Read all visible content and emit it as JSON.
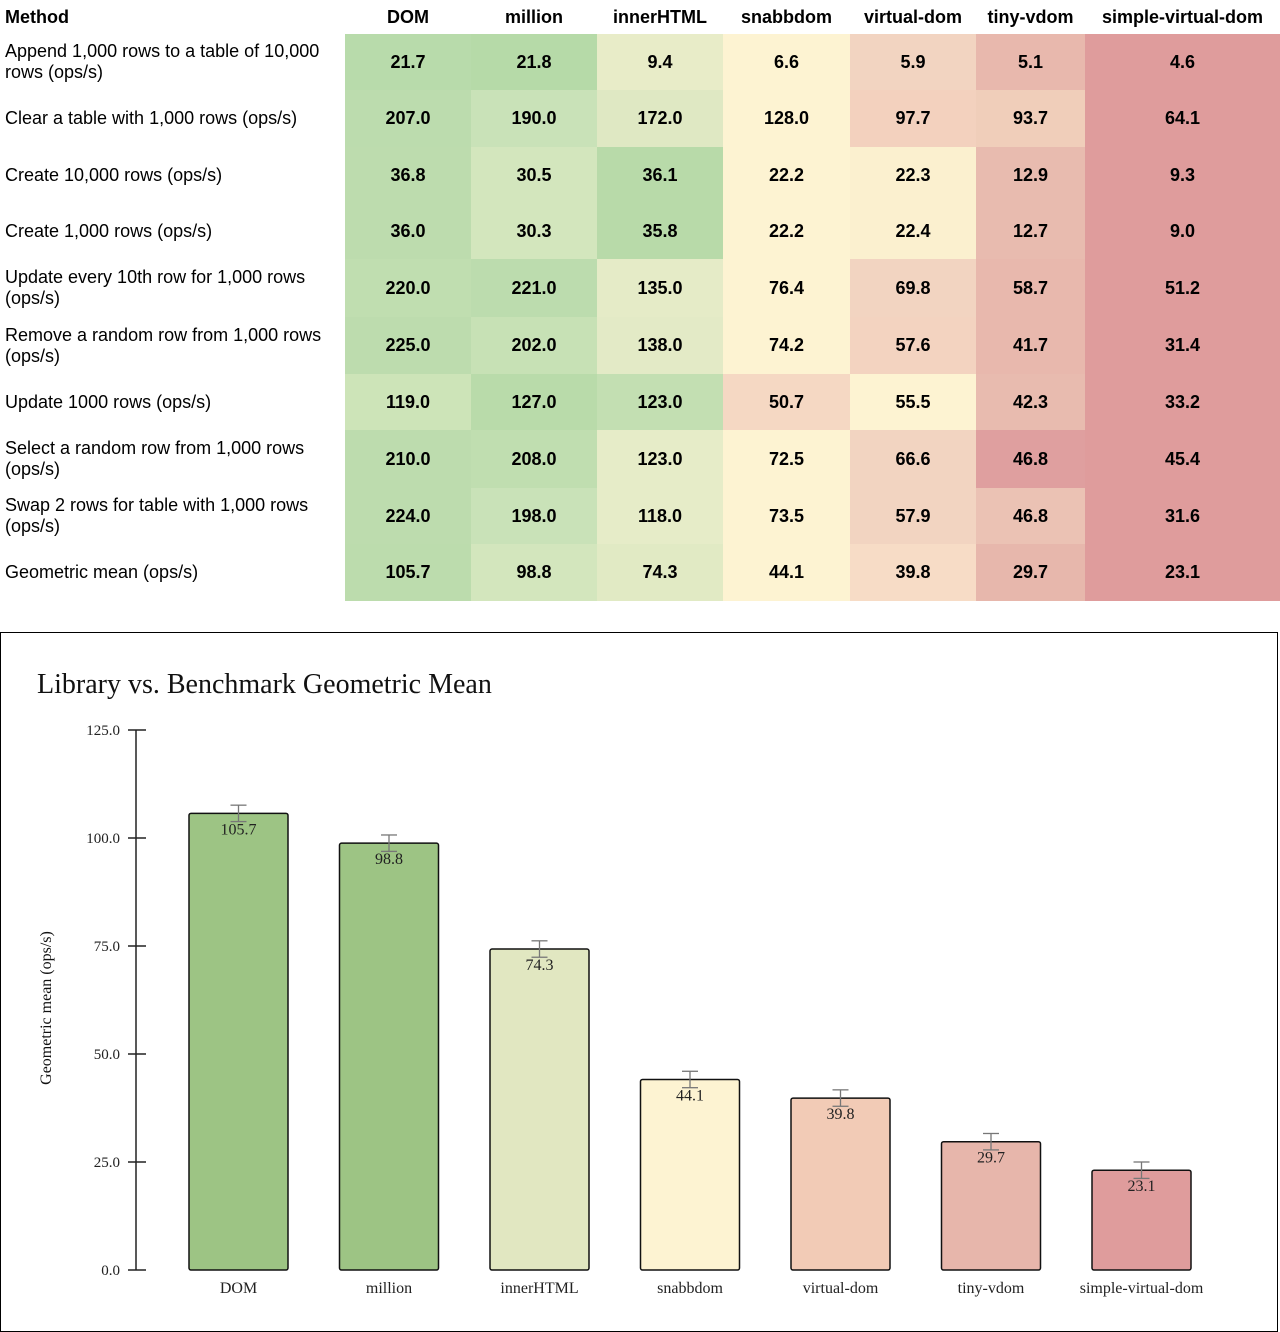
{
  "table": {
    "method_header": "Method",
    "columns": [
      "DOM",
      "million",
      "innerHTML",
      "snabbdom",
      "virtual-dom",
      "tiny-vdom",
      "simple-virtual-dom"
    ],
    "rows": [
      {
        "method": "Append 1,000 rows to a table of 10,000 rows (ops/s)",
        "values": [
          "21.7",
          "21.8",
          "9.4",
          "6.6",
          "5.9",
          "5.1",
          "4.6"
        ]
      },
      {
        "method": "Clear a table with 1,000 rows (ops/s)",
        "values": [
          "207.0",
          "190.0",
          "172.0",
          "128.0",
          "97.7",
          "93.7",
          "64.1"
        ]
      },
      {
        "method": "Create 10,000 rows (ops/s)",
        "values": [
          "36.8",
          "30.5",
          "36.1",
          "22.2",
          "22.3",
          "12.9",
          "9.3"
        ]
      },
      {
        "method": "Create 1,000 rows (ops/s)",
        "values": [
          "36.0",
          "30.3",
          "35.8",
          "22.2",
          "22.4",
          "12.7",
          "9.0"
        ]
      },
      {
        "method": "Update every 10th row for 1,000 rows (ops/s)",
        "values": [
          "220.0",
          "221.0",
          "135.0",
          "76.4",
          "69.8",
          "58.7",
          "51.2"
        ]
      },
      {
        "method": "Remove a random row from 1,000 rows (ops/s)",
        "values": [
          "225.0",
          "202.0",
          "138.0",
          "74.2",
          "57.6",
          "41.7",
          "31.4"
        ]
      },
      {
        "method": "Update 1000 rows (ops/s)",
        "values": [
          "119.0",
          "127.0",
          "123.0",
          "50.7",
          "55.5",
          "42.3",
          "33.2"
        ]
      },
      {
        "method": "Select a random row from 1,000 rows (ops/s)",
        "values": [
          "210.0",
          "208.0",
          "123.0",
          "72.5",
          "66.6",
          "46.8",
          "45.4"
        ]
      },
      {
        "method": "Swap 2 rows for table with 1,000 rows (ops/s)",
        "values": [
          "224.0",
          "198.0",
          "118.0",
          "73.5",
          "57.9",
          "46.8",
          "31.6"
        ]
      },
      {
        "method": "Geometric mean (ops/s)",
        "values": [
          "105.7",
          "98.8",
          "74.3",
          "44.1",
          "39.8",
          "29.7",
          "23.1"
        ]
      }
    ],
    "cell_colors": [
      [
        "#b8dbab",
        "#b6daa8",
        "#e8ecc8",
        "#fdf3d2",
        "#f2d4c1",
        "#e8b8ad",
        "#df9c9c"
      ],
      [
        "#bcdcae",
        "#c9e2b8",
        "#dfe8c3",
        "#fdf3d2",
        "#f3d1be",
        "#f0ceba",
        "#df9c9c"
      ],
      [
        "#bddcae",
        "#d3e6bd",
        "#b8daa9",
        "#fdf3d2",
        "#fbf0cf",
        "#e8bbaf",
        "#df9c9c"
      ],
      [
        "#bddcae",
        "#d3e6bd",
        "#b8daa9",
        "#fdf3d2",
        "#fbf0cf",
        "#e8bbaf",
        "#df9c9c"
      ],
      [
        "#c0deb0",
        "#bcdcae",
        "#e5ebc7",
        "#fdf3d2",
        "#f2d4c1",
        "#e8b8ad",
        "#df9c9c"
      ],
      [
        "#bddcae",
        "#c7e1b5",
        "#e3eac6",
        "#fdf3d2",
        "#f3d3c0",
        "#e8b8ad",
        "#df9c9c"
      ],
      [
        "#cde4b8",
        "#b9dbaa",
        "#c3dfb2",
        "#f5d8c3",
        "#fdf3d2",
        "#e8bbaf",
        "#df9c9c"
      ],
      [
        "#bddcae",
        "#c0deb0",
        "#e6ecc8",
        "#fdf3d2",
        "#f2d4c1",
        "#df9f9f",
        "#df9c9c"
      ],
      [
        "#bddcae",
        "#c9e2b8",
        "#e6ecc8",
        "#fdf3d2",
        "#f2d4c1",
        "#ebc2b4",
        "#df9c9c"
      ],
      [
        "#bcdcad",
        "#d3e6bd",
        "#e1eac4",
        "#fdf3d2",
        "#f7dcc6",
        "#e7b7ac",
        "#df9c9c"
      ]
    ]
  },
  "chart_data": {
    "type": "bar",
    "title": "Library vs. Benchmark Geometric Mean",
    "xlabel": "",
    "ylabel": "Geometric mean (ops/s)",
    "ylim": [
      0,
      125
    ],
    "yticks": [
      "0.0",
      "25.0",
      "50.0",
      "75.0",
      "100.0",
      "125.0"
    ],
    "ytick_values": [
      0,
      25,
      50,
      75,
      100,
      125
    ],
    "categories": [
      "DOM",
      "million",
      "innerHTML",
      "snabbdom",
      "virtual-dom",
      "tiny-vdom",
      "simple-virtual-dom"
    ],
    "values": [
      105.7,
      98.8,
      74.3,
      44.1,
      39.8,
      29.7,
      23.1
    ],
    "value_labels": [
      "105.7",
      "98.8",
      "74.3",
      "44.1",
      "39.8",
      "29.7",
      "23.1"
    ],
    "error": [
      1.9,
      1.9,
      1.9,
      1.9,
      1.9,
      1.9,
      1.9
    ],
    "bar_colors": [
      "#9dc484",
      "#9dc484",
      "#e1e7c1",
      "#fdf3d2",
      "#f2cbb6",
      "#e7b6ab",
      "#df9c9c"
    ],
    "grid": false
  }
}
